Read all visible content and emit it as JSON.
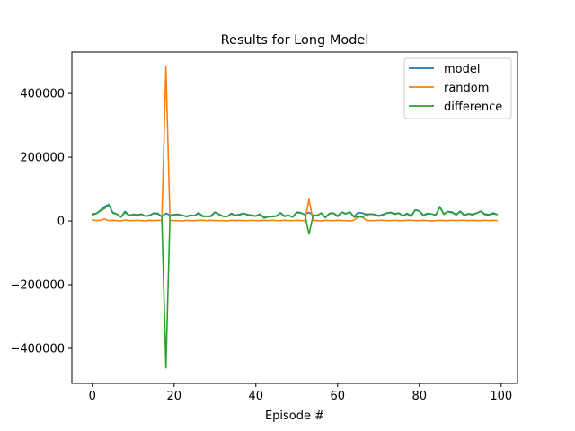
{
  "chart_data": {
    "type": "line",
    "title": "Results for Long Model",
    "xlabel": "Episode #",
    "ylabel": "",
    "xlim": [
      -5,
      104
    ],
    "ylim": [
      -510000,
      530000
    ],
    "xticks": [
      0,
      20,
      40,
      60,
      80,
      100
    ],
    "yticks": [
      -400000,
      -200000,
      0,
      200000,
      400000
    ],
    "grid": false,
    "legend_position": "top-right",
    "x": [
      0,
      1,
      2,
      3,
      4,
      5,
      6,
      7,
      8,
      9,
      10,
      11,
      12,
      13,
      14,
      15,
      16,
      17,
      18,
      19,
      20,
      21,
      22,
      23,
      24,
      25,
      26,
      27,
      28,
      29,
      30,
      31,
      32,
      33,
      34,
      35,
      36,
      37,
      38,
      39,
      40,
      41,
      42,
      43,
      44,
      45,
      46,
      47,
      48,
      49,
      50,
      51,
      52,
      53,
      54,
      55,
      56,
      57,
      58,
      59,
      60,
      61,
      62,
      63,
      64,
      65,
      66,
      67,
      68,
      69,
      70,
      71,
      72,
      73,
      74,
      75,
      76,
      77,
      78,
      79,
      80,
      81,
      82,
      83,
      84,
      85,
      86,
      87,
      88,
      89,
      90,
      91,
      92,
      93,
      94,
      95,
      96,
      97,
      98,
      99
    ],
    "series": [
      {
        "name": "model",
        "color": "#1f77b4",
        "values": [
          22000,
          24000,
          34000,
          45000,
          52000,
          27000,
          22000,
          12000,
          30000,
          18000,
          21000,
          19000,
          22000,
          15000,
          18000,
          25000,
          24000,
          14000,
          24000,
          18000,
          20000,
          21000,
          18000,
          15000,
          18000,
          17000,
          26000,
          16000,
          15000,
          16000,
          28000,
          21000,
          15000,
          14000,
          24000,
          18000,
          21000,
          24000,
          20000,
          18000,
          16000,
          22000,
          11000,
          14000,
          15000,
          16000,
          26000,
          16000,
          18000,
          13000,
          28000,
          26000,
          20000,
          27000,
          18000,
          18000,
          25000,
          12000,
          24000,
          25000,
          16000,
          28000,
          23000,
          28000,
          14000,
          26000,
          25000,
          21000,
          22000,
          21000,
          17000,
          20000,
          25000,
          27000,
          23000,
          25000,
          17000,
          24000,
          16000,
          35000,
          32000,
          18000,
          24000,
          22000,
          19000,
          45000,
          22000,
          30000,
          28000,
          20000,
          31000,
          19000,
          23000,
          21000,
          25000,
          31000,
          22000,
          20000,
          25000,
          21000
        ]
      },
      {
        "name": "random",
        "color": "#ff7f0e",
        "values": [
          3000,
          1000,
          2000,
          6000,
          1000,
          2000,
          1000,
          0,
          3000,
          1000,
          1000,
          2000,
          1000,
          0,
          2000,
          1000,
          2000,
          1000,
          485000,
          2000,
          1000,
          1000,
          0,
          2000,
          1000,
          1000,
          2000,
          2000,
          1000,
          2000,
          1000,
          1000,
          1000,
          0,
          2000,
          1000,
          2000,
          1000,
          1000,
          2000,
          1000,
          1000,
          2000,
          1000,
          2000,
          1000,
          1000,
          2000,
          1000,
          1000,
          2000,
          1000,
          1000,
          68000,
          1000,
          1000,
          0,
          2000,
          1000,
          1000,
          2000,
          1000,
          1000,
          0,
          2000,
          12000,
          13000,
          2000,
          1000,
          1000,
          2000,
          2000,
          1000,
          1000,
          2000,
          1000,
          1000,
          2000,
          2000,
          1000,
          1000,
          2000,
          1000,
          0,
          1000,
          2000,
          1000,
          1000,
          2000,
          1000,
          2000,
          2000,
          1000,
          2000,
          1000,
          1000,
          2000,
          1000,
          2000,
          1000
        ]
      },
      {
        "name": "difference",
        "color": "#2ca02c",
        "values": [
          19000,
          23000,
          32000,
          39000,
          51000,
          25000,
          21000,
          12000,
          27000,
          17000,
          20000,
          17000,
          21000,
          15000,
          16000,
          24000,
          22000,
          13000,
          -461000,
          16000,
          19000,
          20000,
          18000,
          13000,
          17000,
          16000,
          24000,
          14000,
          14000,
          14000,
          27000,
          20000,
          14000,
          14000,
          22000,
          17000,
          19000,
          23000,
          19000,
          16000,
          15000,
          21000,
          9000,
          13000,
          13000,
          15000,
          25000,
          14000,
          17000,
          12000,
          26000,
          25000,
          19000,
          -41000,
          17000,
          17000,
          25000,
          10000,
          23000,
          24000,
          14000,
          27000,
          22000,
          28000,
          12000,
          14000,
          12000,
          19000,
          21000,
          20000,
          15000,
          18000,
          24000,
          26000,
          21000,
          24000,
          16000,
          22000,
          14000,
          34000,
          31000,
          16000,
          23000,
          22000,
          18000,
          43000,
          21000,
          29000,
          26000,
          19000,
          29000,
          17000,
          22000,
          19000,
          24000,
          30000,
          20000,
          19000,
          23000,
          20000
        ]
      }
    ]
  }
}
